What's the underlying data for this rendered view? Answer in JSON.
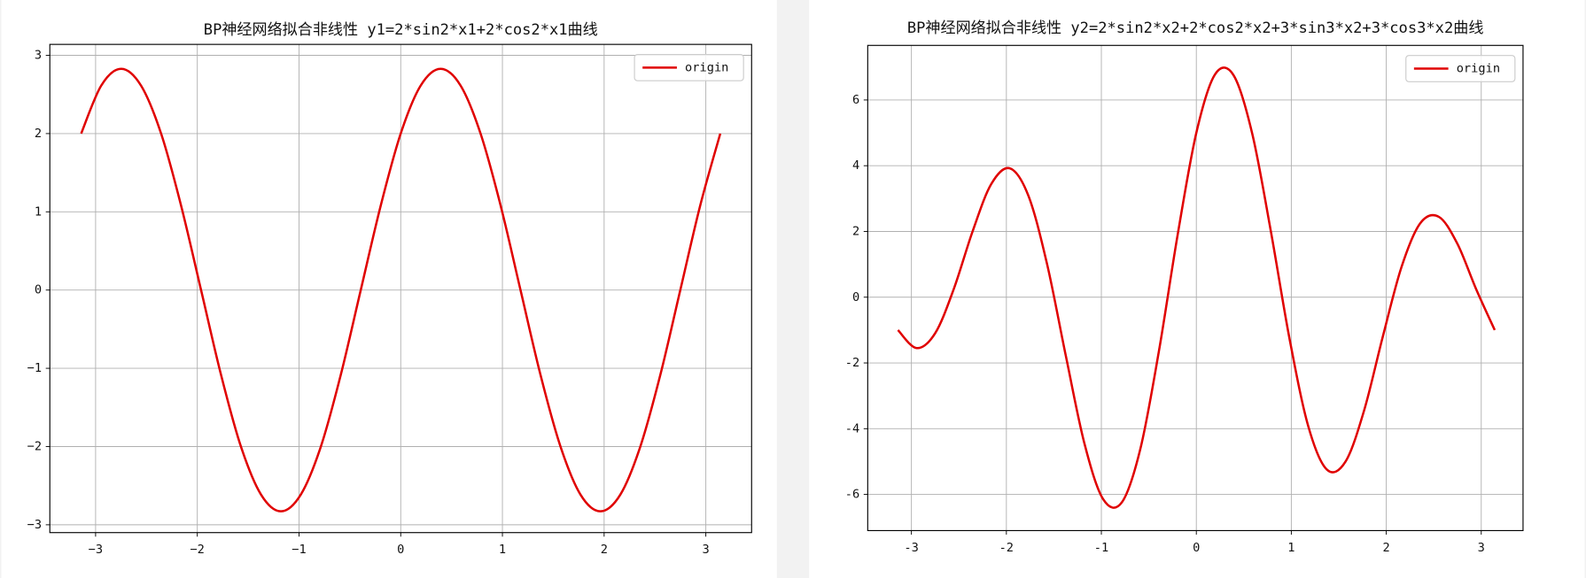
{
  "chart_data": [
    {
      "type": "line",
      "title": "BP神经网络拟合非线性  y1=2*sin2*x1+2*cos2*x1曲线",
      "x": [
        -3.142,
        -2.945,
        -2.749,
        -2.553,
        -2.356,
        -2.16,
        -1.963,
        -1.767,
        -1.571,
        -1.374,
        -1.178,
        -0.982,
        -0.785,
        -0.589,
        -0.393,
        -0.196,
        0,
        0.196,
        0.393,
        0.589,
        0.785,
        0.982,
        1.178,
        1.374,
        1.571,
        1.767,
        1.963,
        2.16,
        2.356,
        2.553,
        2.749,
        2.945,
        3.142
      ],
      "series": [
        {
          "name": "origin",
          "color": "#e00000",
          "values": [
            2,
            2.613,
            2.828,
            2.613,
            2,
            1.082,
            0,
            -1.082,
            -2,
            -2.613,
            -2.828,
            -2.613,
            -2,
            -1.082,
            0,
            1.082,
            2,
            2.613,
            2.828,
            2.613,
            2,
            1.082,
            0,
            -1.082,
            -2,
            -2.613,
            -2.828,
            -2.613,
            -2,
            -1.082,
            0,
            1.082,
            2
          ]
        }
      ],
      "xlim": [
        -3.45,
        3.45
      ],
      "ylim": [
        -3.1,
        3.14
      ],
      "xticks": [
        {
          "value": -3,
          "label": "−3"
        },
        {
          "value": -2,
          "label": "−2"
        },
        {
          "value": -1,
          "label": "−1"
        },
        0,
        1,
        2,
        3
      ],
      "yticks": [
        {
          "value": -3,
          "label": "−3"
        },
        {
          "value": -2,
          "label": "−2"
        },
        {
          "value": -1,
          "label": "−1"
        },
        0,
        1,
        2,
        3
      ],
      "grid": true,
      "legend": "upper right"
    },
    {
      "type": "line",
      "title": "BP神经网络拟合非线性 y2=2*sin2*x2+2*cos2*x2+3*sin3*x2+3*cos3*x2曲线",
      "x": [
        -3.142,
        -2.945,
        -2.749,
        -2.553,
        -2.356,
        -2.16,
        -1.963,
        -1.767,
        -1.571,
        -1.374,
        -1.178,
        -0.982,
        -0.785,
        -0.589,
        -0.393,
        -0.196,
        0,
        0.196,
        0.393,
        0.589,
        0.785,
        0.982,
        1.178,
        1.374,
        1.571,
        1.767,
        1.963,
        2.16,
        2.356,
        2.553,
        2.749,
        2.945,
        3.142
      ],
      "series": [
        {
          "name": "origin",
          "color": "#e00000",
          "values": [
            -1,
            -1.548,
            -1.092,
            0.256,
            2,
            3.439,
            3.92,
            3.079,
            1,
            -1.785,
            -4.452,
            -6.141,
            -6.243,
            -4.61,
            -1.624,
            1.91,
            5,
            6.774,
            6.748,
            4.97,
            2,
            -1.275,
            -3.92,
            -5.243,
            -5,
            -3.441,
            -1.204,
            0.915,
            2.243,
            2.446,
            1.624,
            0.254,
            -1
          ]
        }
      ],
      "xlim": [
        -3.46,
        3.44
      ],
      "ylim": [
        -7.1,
        7.66
      ],
      "xticks": [
        -3,
        -2,
        -1,
        0,
        1,
        2,
        3
      ],
      "yticks": [
        -6,
        -4,
        -2,
        0,
        2,
        4,
        6
      ],
      "grid": true,
      "legend": "upper right"
    }
  ]
}
